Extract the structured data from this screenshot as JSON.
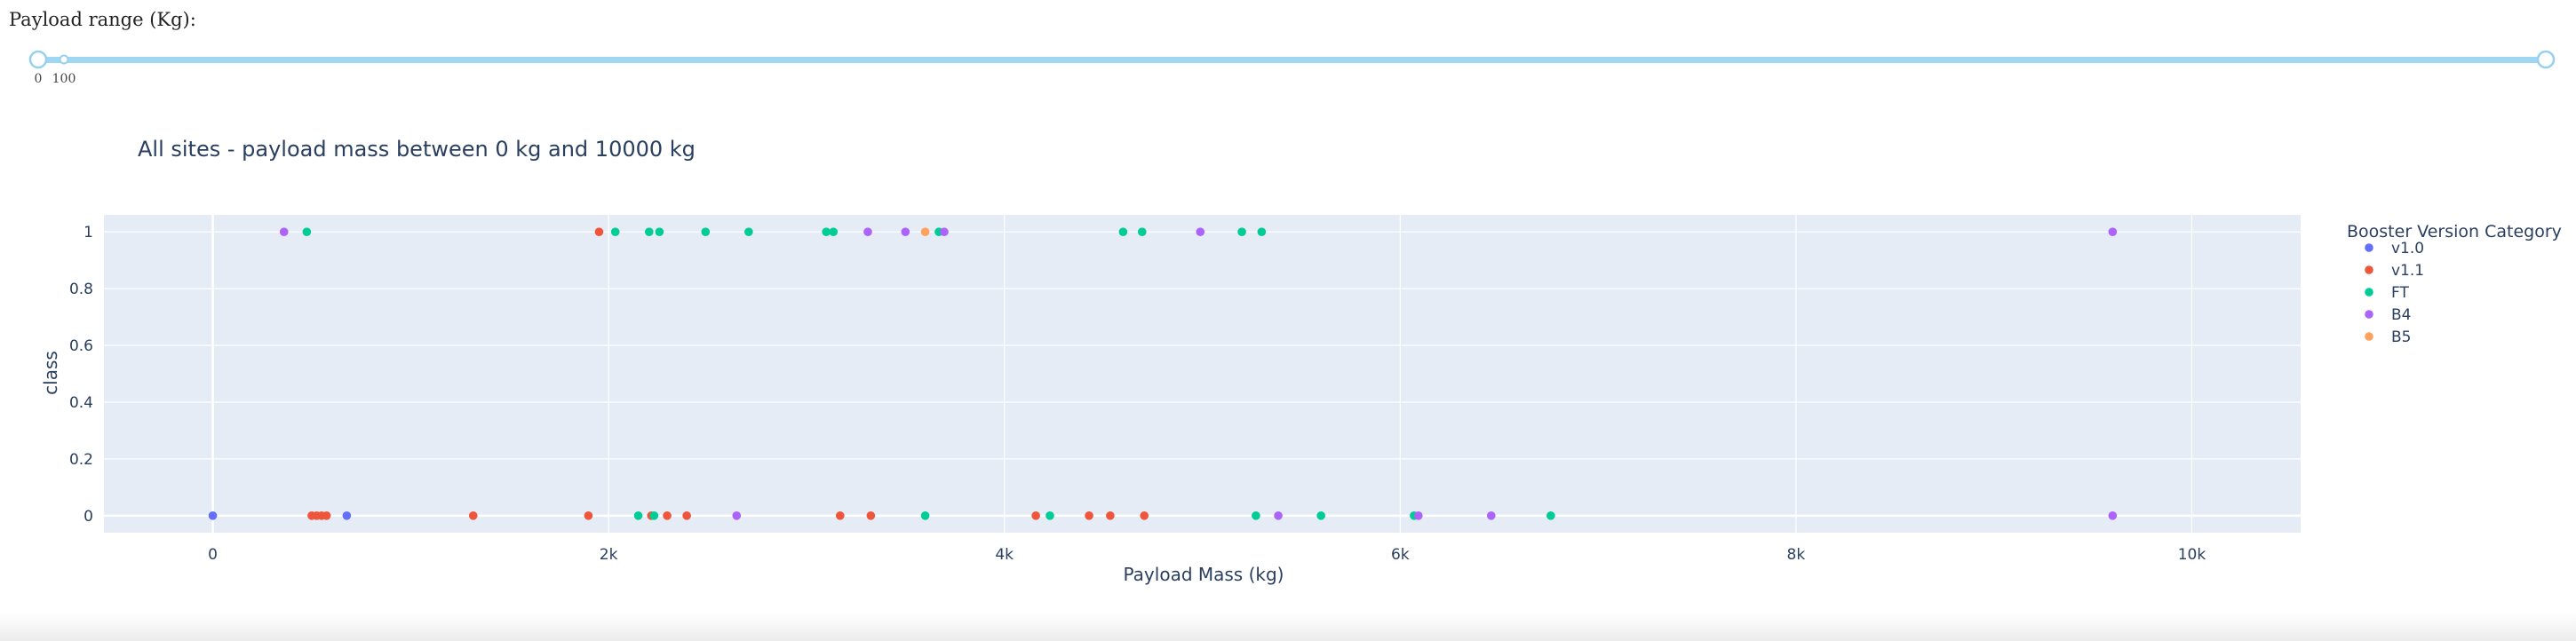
{
  "slider": {
    "label": "Payload range (Kg):",
    "min": 0,
    "max": 10000,
    "value_low": 0,
    "value_high": 10000,
    "tick_labels": [
      "0",
      "100"
    ]
  },
  "chart_data": {
    "type": "scatter",
    "title": "All sites - payload mass between 0 kg and 10000 kg",
    "xlabel": "Payload Mass (kg)",
    "ylabel": "class",
    "xlim": [
      -550,
      10550
    ],
    "ylim": [
      -0.06,
      1.06
    ],
    "xticks": [
      0,
      2000,
      4000,
      6000,
      8000,
      10000
    ],
    "xtick_labels": [
      "0",
      "2k",
      "4k",
      "6k",
      "8k",
      "10k"
    ],
    "yticks": [
      0,
      0.2,
      0.4,
      0.6,
      0.8,
      1
    ],
    "ytick_labels": [
      "0",
      "0.2",
      "0.4",
      "0.6",
      "0.8",
      "1"
    ],
    "grid": true,
    "legend_title": "Booster Version Category",
    "legend_position": "top-right",
    "series": [
      {
        "name": "v1.0",
        "color": "#636efa",
        "points": [
          [
            0,
            0
          ],
          [
            677,
            0
          ]
        ]
      },
      {
        "name": "v1.1",
        "color": "#ef553b",
        "points": [
          [
            500,
            0
          ],
          [
            525,
            0
          ],
          [
            550,
            0
          ],
          [
            575,
            0
          ],
          [
            1316,
            0
          ],
          [
            1898,
            0
          ],
          [
            1952,
            1
          ],
          [
            2216,
            0
          ],
          [
            2296,
            0
          ],
          [
            2395,
            0
          ],
          [
            3170,
            0
          ],
          [
            3325,
            0
          ],
          [
            4159,
            0
          ],
          [
            4428,
            0
          ],
          [
            4535,
            0
          ],
          [
            4707,
            0
          ]
        ]
      },
      {
        "name": "FT",
        "color": "#00cc96",
        "points": [
          [
            475,
            1
          ],
          [
            2034,
            1
          ],
          [
            2205,
            1
          ],
          [
            2257,
            1
          ],
          [
            2490,
            1
          ],
          [
            2708,
            1
          ],
          [
            3100,
            1
          ],
          [
            3136,
            1
          ],
          [
            3669,
            1
          ],
          [
            4600,
            1
          ],
          [
            4696,
            1
          ],
          [
            5200,
            1
          ],
          [
            5300,
            1
          ],
          [
            2150,
            0
          ],
          [
            2230,
            0
          ],
          [
            3600,
            0
          ],
          [
            4230,
            0
          ],
          [
            5271,
            0
          ],
          [
            5600,
            0
          ],
          [
            6070,
            0
          ],
          [
            6761,
            0
          ]
        ]
      },
      {
        "name": "B4",
        "color": "#ab63fa",
        "points": [
          [
            360,
            1
          ],
          [
            3310,
            1
          ],
          [
            3500,
            1
          ],
          [
            3696,
            1
          ],
          [
            4990,
            1
          ],
          [
            9600,
            1
          ],
          [
            2647,
            0
          ],
          [
            5384,
            0
          ],
          [
            6092,
            0
          ],
          [
            6460,
            0
          ],
          [
            9600,
            0
          ]
        ]
      },
      {
        "name": "B5",
        "color": "#ffa15a",
        "points": [
          [
            3600,
            1
          ]
        ]
      }
    ]
  }
}
